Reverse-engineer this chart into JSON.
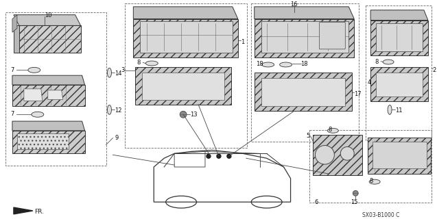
{
  "bg_color": "#ffffff",
  "diagram_code": "SX03-B1000 C",
  "line_color": "#2a2a2a",
  "hatch_color": "#888888",
  "part_fill": "#d0d0d0",
  "part_edge": "#333333"
}
